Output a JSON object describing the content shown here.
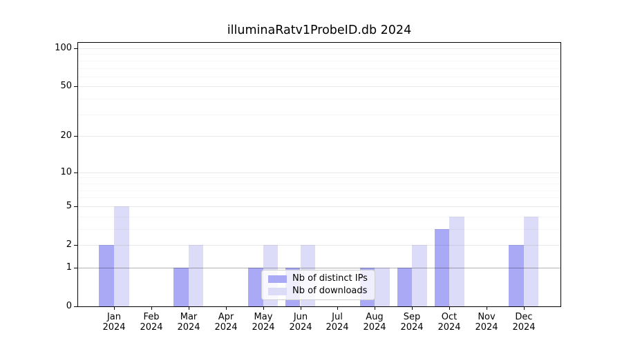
{
  "title": "illuminaRatv1ProbeID.db 2024",
  "chart_data": {
    "type": "bar",
    "title": "illuminaRatv1ProbeID.db 2024",
    "categories": [
      "Jan",
      "Feb",
      "Mar",
      "Apr",
      "May",
      "Jun",
      "Jul",
      "Aug",
      "Sep",
      "Oct",
      "Nov",
      "Dec"
    ],
    "category_year": "2024",
    "series": [
      {
        "name": "Nb of distinct IPs",
        "color": "#a9a9f6",
        "values": [
          2,
          0,
          1,
          0,
          1,
          1,
          0,
          1,
          1,
          3,
          0,
          2
        ]
      },
      {
        "name": "Nb of downloads",
        "color": "#dcdcf8",
        "values": [
          5,
          0,
          2,
          0,
          2,
          2,
          0,
          1,
          2,
          4,
          0,
          4
        ]
      }
    ],
    "yscale": "log1p",
    "ylim": [
      0,
      100
    ],
    "yticks": [
      0,
      1,
      2,
      5,
      10,
      20,
      50,
      100
    ],
    "yticks_minor": [
      3,
      4,
      6,
      7,
      8,
      9,
      30,
      40,
      60,
      70,
      80,
      90
    ],
    "baseline_value": 1,
    "grid": true,
    "legend_position": "lower center",
    "xlabel": "",
    "ylabel": ""
  },
  "colors": {
    "bar_distinct_ips": "#a9a9f6",
    "bar_downloads": "#dcdcf8",
    "axis": "#000000",
    "grid_major": "rgba(0,0,0,0.085)",
    "grid_minor": "rgba(0,0,0,0.04)",
    "baseline": "rgba(0,0,0,0.30)",
    "legend_border": "#cfcfcf",
    "background": "#ffffff"
  }
}
